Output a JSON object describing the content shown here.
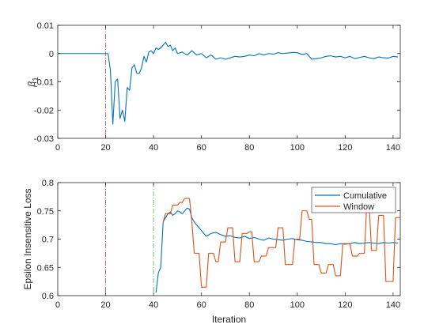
{
  "chart_data": [
    {
      "type": "line",
      "title": "",
      "xlabel": "",
      "ylabel": "β",
      "ylabel_subscript": "1",
      "xlim": [
        0,
        143
      ],
      "ylim": [
        -0.03,
        0.01
      ],
      "xticks": [
        0,
        20,
        40,
        60,
        80,
        100,
        120,
        140
      ],
      "yticks": [
        -0.03,
        -0.02,
        -0.01,
        0,
        0.01
      ],
      "ytick_labels": [
        "-0.03",
        "-0.02",
        "-0.01",
        "0",
        "0.01"
      ],
      "grid": false,
      "vlines": [
        {
          "x": 20,
          "color": "#d9534f",
          "style": "dashdot"
        }
      ],
      "series": [
        {
          "name": "",
          "color": "#0072BD",
          "x": [
            0,
            21,
            22,
            23,
            24,
            25,
            26,
            27,
            28,
            29,
            30,
            31,
            32,
            33,
            34,
            35,
            36,
            37,
            38,
            39,
            40,
            41,
            42,
            43,
            44,
            45,
            46,
            47,
            48,
            49,
            50,
            52,
            54,
            56,
            58,
            60,
            62,
            64,
            66,
            68,
            70,
            72,
            74,
            76,
            78,
            80,
            82,
            84,
            86,
            88,
            90,
            92,
            94,
            96,
            98,
            100,
            102,
            104,
            106,
            108,
            110,
            112,
            114,
            116,
            118,
            120,
            122,
            124,
            126,
            128,
            130,
            132,
            134,
            136,
            138,
            140,
            142
          ],
          "y": [
            0,
            0,
            -0.006,
            -0.025,
            -0.01,
            -0.009,
            -0.023,
            -0.02,
            -0.024,
            -0.012,
            -0.013,
            -0.005,
            -0.004,
            -0.007,
            -0.007,
            -0.005,
            -0.001,
            -0.003,
            0.0005,
            0.001,
            0,
            0.002,
            0.0015,
            0.002,
            0.003,
            0.004,
            0.0025,
            0.003,
            0.001,
            0.002,
            0,
            0.0005,
            -0.0005,
            0.001,
            -0.0005,
            0,
            -0.0015,
            -0.0005,
            -0.002,
            -0.0015,
            -0.002,
            -0.0015,
            -0.001,
            -0.0012,
            -0.001,
            -0.0005,
            -0.0008,
            0,
            -0.0005,
            0,
            -0.0002,
            0.0003,
            0,
            0.0002,
            0.0004,
            0.0003,
            -0.0003,
            0,
            -0.002,
            -0.0018,
            -0.0015,
            -0.001,
            -0.0008,
            -0.0012,
            -0.001,
            -0.0015,
            -0.001,
            -0.0018,
            -0.0014,
            -0.001,
            -0.0015,
            -0.0018,
            -0.0012,
            -0.0015,
            -0.0016,
            -0.001,
            -0.0012
          ]
        }
      ]
    },
    {
      "type": "line",
      "title": "",
      "xlabel": "Iteration",
      "ylabel": "Epsilon Insensitive Loss",
      "xlim": [
        0,
        143
      ],
      "ylim": [
        0.6,
        0.8
      ],
      "xticks": [
        0,
        20,
        40,
        60,
        80,
        100,
        120,
        140
      ],
      "yticks": [
        0.6,
        0.65,
        0.7,
        0.75,
        0.8
      ],
      "ytick_labels": [
        "0.6",
        "0.65",
        "0.7",
        "0.75",
        "0.8"
      ],
      "grid": false,
      "legend_position": "top-right",
      "vlines": [
        {
          "x": 20,
          "color": "#d9534f",
          "style": "dashdot"
        },
        {
          "x": 40,
          "color": "#5cb85c",
          "style": "dashdot"
        }
      ],
      "series": [
        {
          "name": "Cumulative",
          "color": "#0072BD",
          "x": [
            41,
            42,
            43,
            44,
            45,
            46,
            47,
            48,
            49,
            50,
            51,
            52,
            53,
            54,
            55,
            56,
            57,
            58,
            59,
            60,
            62,
            64,
            66,
            68,
            70,
            72,
            74,
            76,
            78,
            80,
            82,
            84,
            86,
            88,
            90,
            92,
            94,
            96,
            98,
            100,
            102,
            104,
            106,
            108,
            110,
            112,
            114,
            116,
            118,
            120,
            122,
            124,
            126,
            128,
            130,
            132,
            134,
            136,
            138,
            140,
            142
          ],
          "y": [
            0.605,
            0.64,
            0.65,
            0.73,
            0.738,
            0.745,
            0.748,
            0.742,
            0.745,
            0.75,
            0.748,
            0.745,
            0.75,
            0.755,
            0.753,
            0.738,
            0.73,
            0.725,
            0.72,
            0.715,
            0.705,
            0.71,
            0.712,
            0.708,
            0.705,
            0.706,
            0.703,
            0.702,
            0.705,
            0.701,
            0.703,
            0.7,
            0.698,
            0.702,
            0.7,
            0.699,
            0.698,
            0.7,
            0.701,
            0.699,
            0.698,
            0.696,
            0.695,
            0.694,
            0.694,
            0.692,
            0.692,
            0.69,
            0.692,
            0.691,
            0.692,
            0.694,
            0.692,
            0.693,
            0.694,
            0.693,
            0.692,
            0.694,
            0.693,
            0.694,
            0.693
          ]
        },
        {
          "name": "Window",
          "color": "#D95319",
          "x": [
            44,
            45,
            46,
            47,
            48,
            49,
            50,
            51,
            52,
            53,
            54,
            55,
            56,
            57,
            58,
            59,
            60,
            61,
            62,
            63,
            64,
            65,
            66,
            67,
            68,
            69,
            70,
            71,
            72,
            73,
            74,
            75,
            76,
            77,
            78,
            79,
            80,
            81,
            82,
            83,
            84,
            85,
            86,
            87,
            88,
            89,
            90,
            91,
            92,
            93,
            94,
            95,
            96,
            97,
            98,
            99,
            100,
            101,
            102,
            103,
            104,
            105,
            106,
            107,
            108,
            109,
            110,
            111,
            112,
            113,
            114,
            115,
            116,
            117,
            118,
            119,
            120,
            121,
            122,
            123,
            124,
            125,
            126,
            127,
            128,
            129,
            130,
            131,
            132,
            133,
            134,
            135,
            136,
            137,
            138,
            139,
            140,
            141,
            142,
            143
          ],
          "y": [
            0.73,
            0.745,
            0.745,
            0.745,
            0.76,
            0.76,
            0.76,
            0.765,
            0.765,
            0.772,
            0.772,
            0.772,
            0.73,
            0.675,
            0.675,
            0.675,
            0.615,
            0.615,
            0.615,
            0.675,
            0.675,
            0.675,
            0.66,
            0.66,
            0.695,
            0.695,
            0.695,
            0.72,
            0.72,
            0.72,
            0.66,
            0.66,
            0.66,
            0.71,
            0.71,
            0.71,
            0.713,
            0.713,
            0.66,
            0.66,
            0.66,
            0.67,
            0.67,
            0.67,
            0.685,
            0.685,
            0.685,
            0.685,
            0.72,
            0.72,
            0.72,
            0.655,
            0.655,
            0.655,
            0.655,
            0.7,
            0.7,
            0.7,
            0.75,
            0.75,
            0.75,
            0.735,
            0.735,
            0.655,
            0.655,
            0.655,
            0.64,
            0.64,
            0.64,
            0.655,
            0.655,
            0.655,
            0.635,
            0.635,
            0.635,
            0.692,
            0.692,
            0.692,
            0.692,
            0.67,
            0.67,
            0.67,
            0.675,
            0.675,
            0.675,
            0.76,
            0.76,
            0.68,
            0.68,
            0.68,
            0.742,
            0.742,
            0.742,
            0.625,
            0.625,
            0.625,
            0.625,
            0.738,
            0.738,
            0.738
          ]
        }
      ]
    }
  ]
}
